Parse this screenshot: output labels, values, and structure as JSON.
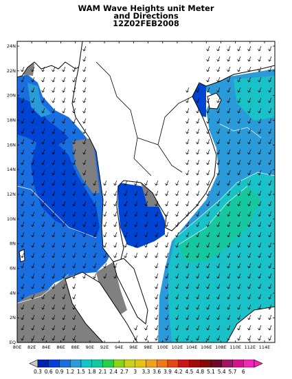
{
  "title": {
    "line1": "WAM Wave Heights unit Meter",
    "line2": "and Directions",
    "line3": "12Z02FEB2008"
  },
  "axes": {
    "lat_labels": [
      "24N",
      "22N",
      "20N",
      "18N",
      "16N",
      "14N",
      "12N",
      "10N",
      "8N",
      "6N",
      "4N",
      "2N",
      "EQ"
    ],
    "lon_labels": [
      "80E",
      "82E",
      "84E",
      "86E",
      "88E",
      "90E",
      "92E",
      "94E",
      "96E",
      "98E",
      "100E",
      "102E",
      "104E",
      "106E",
      "108E",
      "110E",
      "112E",
      "114E"
    ]
  },
  "colorbar": {
    "labels": [
      "0.3",
      "0.6",
      "0.9",
      "1.2",
      "1.5",
      "1.8",
      "2.1",
      "2.4",
      "2.7",
      "3",
      "3.3",
      "3.6",
      "3.9",
      "4.2",
      "4.5",
      "4.8",
      "5.1",
      "5.4",
      "5.7",
      "6"
    ],
    "colors": [
      "#0022b0",
      "#0044d4",
      "#1a6fe0",
      "#2b9ad8",
      "#19c2c8",
      "#15c8a0",
      "#28d04a",
      "#8fd21e",
      "#c8d21a",
      "#e6c21a",
      "#f0a21a",
      "#f0781a",
      "#e04a14",
      "#c81414",
      "#a00a0a",
      "#820a0a",
      "#6a0a2a",
      "#a01464",
      "#d2148c",
      "#f028b4"
    ]
  },
  "map_colors": {
    "ocean_low": "#1a6fe0",
    "ocean_mid": "#2b9ad8",
    "ocean_high": "#19c2c8",
    "deep_blue": "#0044d4",
    "land_mask": "#808080",
    "land": "#ffffff",
    "coast": "#000000"
  }
}
